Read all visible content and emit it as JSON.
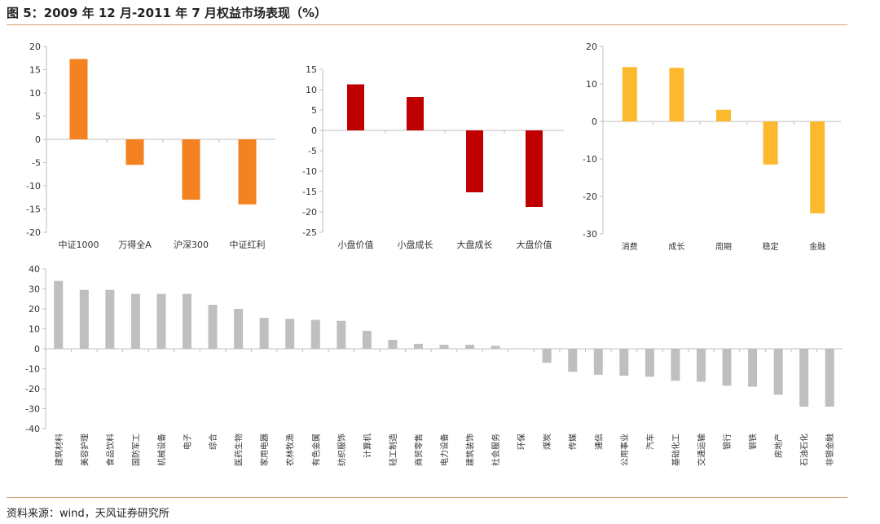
{
  "title": "图 5：2009 年 12 月-2011 年 7 月权益市场表现（%）",
  "source": "资料来源：wind，天风证券研究所",
  "colors": {
    "orange": "#F58220",
    "red": "#C00000",
    "yellow": "#FDB92E",
    "gray": "#BFBFBF"
  },
  "chart_data": [
    {
      "type": "bar",
      "categories": [
        "中证1000",
        "万得全A",
        "沪深300",
        "中证红利"
      ],
      "values": [
        17.3,
        -5.5,
        -13,
        -14
      ],
      "ylim": [
        -20,
        20
      ],
      "yticks": [
        20,
        15,
        10,
        5,
        0,
        -5,
        -10,
        -15,
        -20
      ],
      "title": "",
      "xlabel": "",
      "ylabel": ""
    },
    {
      "type": "bar",
      "categories": [
        "小盘价值",
        "小盘成长",
        "大盘成长",
        "大盘价值"
      ],
      "values": [
        11.3,
        8.2,
        -15.2,
        -18.8
      ],
      "ylim": [
        -25,
        15
      ],
      "yticks": [
        15,
        10,
        5,
        0,
        -5,
        -10,
        -15,
        -20,
        -25
      ],
      "title": "",
      "xlabel": "",
      "ylabel": ""
    },
    {
      "type": "bar",
      "categories": [
        "消费",
        "成长",
        "周期",
        "稳定",
        "金融"
      ],
      "values": [
        14.5,
        14.3,
        3.1,
        -11.5,
        -24.5
      ],
      "ylim": [
        -30,
        20
      ],
      "yticks": [
        20,
        10,
        0,
        -10,
        -20,
        -30
      ],
      "title": "",
      "xlabel": "",
      "ylabel": ""
    },
    {
      "type": "bar",
      "categories": [
        "建筑材料",
        "美容护理",
        "食品饮料",
        "国防军工",
        "机械设备",
        "电子",
        "综合",
        "医药生物",
        "家用电器",
        "农林牧渔",
        "有色金属",
        "纺织服饰",
        "计算机",
        "轻工制造",
        "商贸零售",
        "电力设备",
        "建筑装饰",
        "社会服务",
        "环保",
        "煤炭",
        "传媒",
        "通信",
        "公用事业",
        "汽车",
        "基础化工",
        "交通运输",
        "银行",
        "钢铁",
        "房地产",
        "石油石化",
        "非银金融"
      ],
      "values": [
        34,
        29.5,
        29.5,
        27.5,
        27.5,
        27.5,
        22,
        20,
        15.5,
        15,
        14.5,
        14,
        9,
        4.5,
        2.5,
        2,
        2,
        1.5,
        0,
        -7,
        -11.5,
        -13,
        -13.5,
        -14,
        -16,
        -16.5,
        -18.5,
        -19,
        -23,
        -29,
        -29
      ],
      "ylim": [
        -40,
        40
      ],
      "yticks": [
        40,
        30,
        20,
        10,
        0,
        -10,
        -20,
        -30,
        -40
      ],
      "title": "",
      "xlabel": "",
      "ylabel": ""
    }
  ]
}
